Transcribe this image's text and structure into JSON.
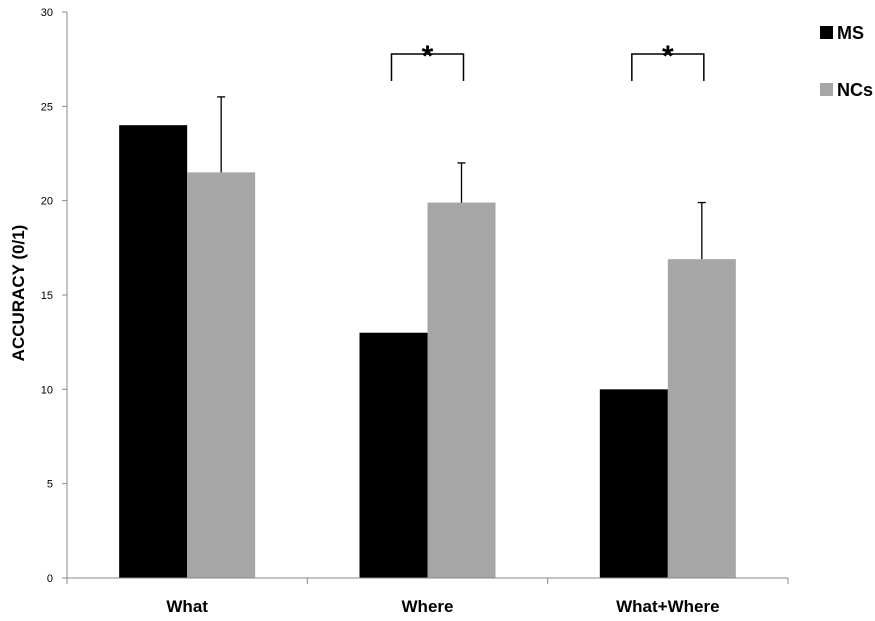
{
  "chart_data": {
    "type": "bar",
    "categories": [
      "What",
      "Where",
      "What+Where"
    ],
    "series": [
      {
        "name": "MS",
        "values": [
          24,
          13,
          10
        ],
        "errors": [
          null,
          null,
          null
        ],
        "color": "#000000"
      },
      {
        "name": "NCs",
        "values": [
          21.5,
          19.9,
          16.9
        ],
        "errors": [
          4.0,
          2.1,
          3.0
        ],
        "color": "#a6a6a6"
      }
    ],
    "xlabel": "",
    "ylabel": "ACCURACY (0/1)",
    "ylim": [
      0,
      30
    ],
    "yticks": [
      0,
      5,
      10,
      15,
      20,
      25,
      30
    ],
    "grid": false,
    "legend_position": "top-right",
    "annotations": [
      {
        "category": "Where",
        "text": "*"
      },
      {
        "category": "What+Where",
        "text": "*"
      }
    ]
  }
}
